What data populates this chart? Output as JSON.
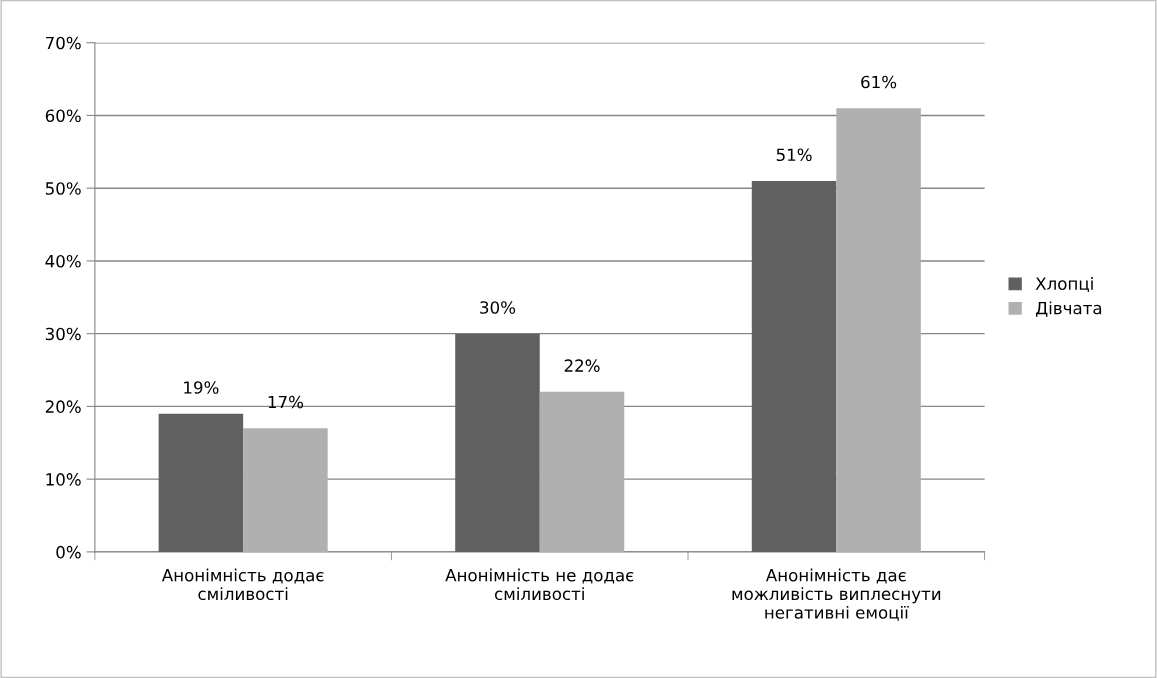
{
  "chart_data": {
    "type": "bar",
    "categories": [
      "Анонімність додає\nсміливості",
      "Анонімність не додає\nсміливості",
      "Анонімність дає\nможливість виплеснути\nнегативні емоції"
    ],
    "series": [
      {
        "name": "Хлопці",
        "color": "#606060",
        "values": [
          19,
          30,
          51
        ],
        "value_labels": [
          "19%",
          "30%",
          "51%"
        ]
      },
      {
        "name": "Дівчата",
        "color": "#b0b0b0",
        "values": [
          17,
          22,
          61
        ],
        "value_labels": [
          "17%",
          "22%",
          "61%"
        ]
      }
    ],
    "ylim": [
      0,
      70
    ],
    "yticks": [
      {
        "value": 0,
        "label": "0%"
      },
      {
        "value": 10,
        "label": "10%"
      },
      {
        "value": 20,
        "label": "20%"
      },
      {
        "value": 30,
        "label": "30%"
      },
      {
        "value": 40,
        "label": "40%"
      },
      {
        "value": 50,
        "label": "50%"
      },
      {
        "value": 60,
        "label": "60%"
      },
      {
        "value": 70,
        "label": "70%"
      }
    ],
    "grid": "y",
    "legend": "right"
  }
}
